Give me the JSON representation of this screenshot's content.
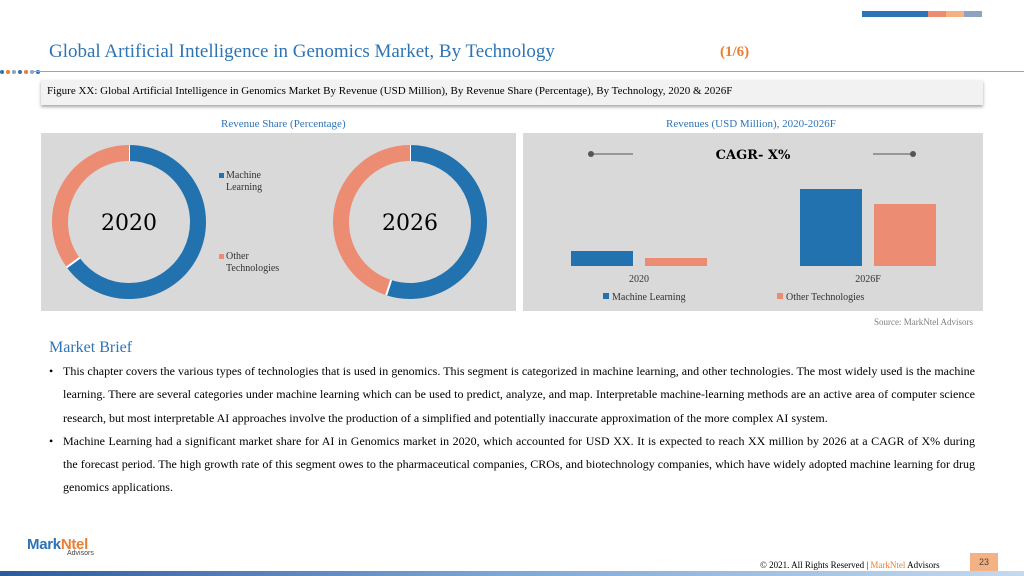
{
  "header": {
    "title": "Global Artificial Intelligence in Genomics Market, By Technology",
    "pager": "(1/6)"
  },
  "figure_caption": "Figure XX: Global Artificial Intelligence in Genomics Market By Revenue (USD Million), By Revenue Share (Percentage), By Technology, 2020 & 2026F",
  "left_panel_title": "Revenue Share (Percentage)",
  "right_panel_title": "Revenues (USD Million), 2020-2026F",
  "colors": {
    "machine_learning": "#2272b0",
    "other": "#eb8c73",
    "accent": "#2e74b5",
    "orange": "#ed7d31"
  },
  "chart_data": [
    {
      "type": "pie",
      "center_label": "2020",
      "categories": [
        "Machine Learning",
        "Other Technologies"
      ],
      "values": [
        65,
        35
      ],
      "legend": [
        "Machine Learning",
        "Other Technologies"
      ]
    },
    {
      "type": "pie",
      "center_label": "2026",
      "categories": [
        "Machine Learning",
        "Other Technologies"
      ],
      "values": [
        55,
        45
      ]
    },
    {
      "type": "bar",
      "title": "CAGR- X%",
      "categories": [
        "2020",
        "2026F"
      ],
      "series": [
        {
          "name": "Machine Learning",
          "values": [
            15,
            77
          ]
        },
        {
          "name": "Other Technologies",
          "values": [
            8,
            62
          ]
        }
      ],
      "ylim": [
        0,
        100
      ],
      "legend_position": "bottom"
    }
  ],
  "source": "Source: MarkNtel Advisors",
  "brief": {
    "title": "Market Brief",
    "bullets": [
      "This chapter covers the various types of technologies that is used in genomics. This segment is categorized in machine learning, and other technologies. The most widely used is the machine learning. There are several categories under machine learning which can be used to predict, analyze, and map. Interpretable machine-learning methods are an active area of computer science research, but most interpretable AI approaches involve the production of a simplified and potentially inaccurate approximation of the more complex AI system.",
      "Machine Learning had a significant market share for AI in Genomics market in 2020, which accounted for USD XX. It is expected to reach XX million by 2026 at a CAGR of X% during the forecast period. The high growth rate of this segment owes to the pharmaceutical companies, CROs, and biotechnology companies, which have widely adopted machine learning for drug genomics applications."
    ],
    "bullet_symbol": "•"
  },
  "footer": {
    "copyright_prefix": "© 2021. All Rights Reserved | ",
    "brand_mark": "MarkNtel",
    "brand_rest": " Advisors",
    "page_number": "23"
  },
  "logo": {
    "part1": "Mark",
    "part2": "Ntel",
    "tagline": "Advisors"
  }
}
